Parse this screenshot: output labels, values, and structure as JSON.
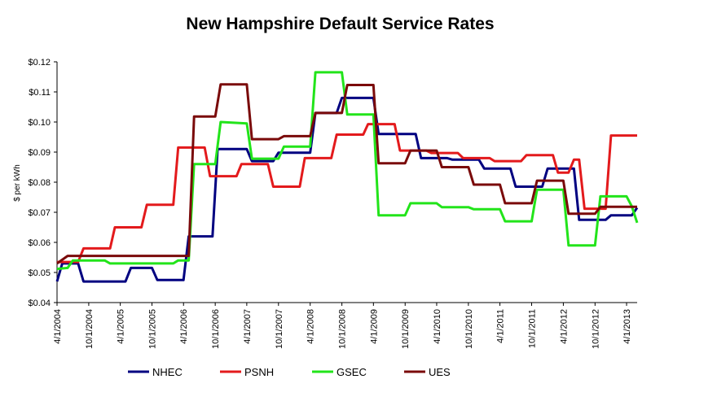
{
  "chart_data": {
    "type": "line",
    "title": "New Hampshire Default Service Rates",
    "xlabel": "",
    "ylabel": "$ per kWh",
    "ylim": [
      0.04,
      0.12
    ],
    "xlim": [
      "2004-04-01",
      "2013-06-01"
    ],
    "y_tick_labels": [
      "$0.04",
      "$0.05",
      "$0.06",
      "$0.07",
      "$0.08",
      "$0.09",
      "$0.10",
      "$0.11",
      "$0.12"
    ],
    "y_tick_values": [
      0.04,
      0.05,
      0.06,
      0.07,
      0.08,
      0.09,
      0.1,
      0.11,
      0.12
    ],
    "x_ticks": [
      {
        "date": "2004-04-01",
        "label": "4/1/2004"
      },
      {
        "date": "2004-10-01",
        "label": "10/1/2004"
      },
      {
        "date": "2005-04-01",
        "label": "4/1/2005"
      },
      {
        "date": "2005-10-01",
        "label": "10/1/2005"
      },
      {
        "date": "2006-04-01",
        "label": "4/1/2006"
      },
      {
        "date": "2006-10-01",
        "label": "10/1/2006"
      },
      {
        "date": "2007-04-01",
        "label": "4/1/2007"
      },
      {
        "date": "2007-10-01",
        "label": "10/1/2007"
      },
      {
        "date": "2008-04-01",
        "label": "4/1/2008"
      },
      {
        "date": "2008-10-01",
        "label": "10/1/2008"
      },
      {
        "date": "2009-04-01",
        "label": "4/1/2009"
      },
      {
        "date": "2009-10-01",
        "label": "10/1/2009"
      },
      {
        "date": "2010-04-01",
        "label": "4/1/2010"
      },
      {
        "date": "2010-10-01",
        "label": "10/1/2010"
      },
      {
        "date": "2011-04-01",
        "label": "4/1/2011"
      },
      {
        "date": "2011-10-01",
        "label": "10/1/2011"
      },
      {
        "date": "2012-04-01",
        "label": "4/1/2012"
      },
      {
        "date": "2012-10-01",
        "label": "10/1/2012"
      },
      {
        "date": "2013-04-01",
        "label": "4/1/2013"
      }
    ],
    "grid": false,
    "legend_position": "bottom",
    "series": [
      {
        "name": "NHEC",
        "color": "#000080",
        "points": [
          [
            "2004-04-01",
            0.047
          ],
          [
            "2004-05-01",
            0.053
          ],
          [
            "2004-08-01",
            0.053
          ],
          [
            "2004-09-01",
            0.047
          ],
          [
            "2005-05-01",
            0.047
          ],
          [
            "2005-06-01",
            0.0515
          ],
          [
            "2005-10-01",
            0.0515
          ],
          [
            "2005-11-01",
            0.0475
          ],
          [
            "2006-04-01",
            0.0475
          ],
          [
            "2006-05-01",
            0.062
          ],
          [
            "2006-09-15",
            0.062
          ],
          [
            "2006-10-15",
            0.091
          ],
          [
            "2007-04-01",
            0.091
          ],
          [
            "2007-05-01",
            0.087
          ],
          [
            "2007-09-01",
            0.087
          ],
          [
            "2007-10-01",
            0.0898
          ],
          [
            "2008-04-01",
            0.0898
          ],
          [
            "2008-05-01",
            0.103
          ],
          [
            "2008-09-01",
            0.103
          ],
          [
            "2008-10-01",
            0.108
          ],
          [
            "2009-04-01",
            0.108
          ],
          [
            "2009-05-01",
            0.096
          ],
          [
            "2009-12-01",
            0.096
          ],
          [
            "2010-01-01",
            0.088
          ],
          [
            "2010-06-01",
            0.088
          ],
          [
            "2010-07-01",
            0.0875
          ],
          [
            "2010-12-01",
            0.0875
          ],
          [
            "2011-01-01",
            0.0845
          ],
          [
            "2011-06-01",
            0.0845
          ],
          [
            "2011-07-01",
            0.0785
          ],
          [
            "2011-12-01",
            0.0785
          ],
          [
            "2012-01-01",
            0.0845
          ],
          [
            "2012-06-01",
            0.0845
          ],
          [
            "2012-07-01",
            0.0675
          ],
          [
            "2012-12-01",
            0.0675
          ],
          [
            "2013-01-01",
            0.069
          ],
          [
            "2013-05-01",
            0.069
          ],
          [
            "2013-06-01",
            0.0715
          ]
        ]
      },
      {
        "name": "PSNH",
        "color": "#e31a1c",
        "points": [
          [
            "2004-04-01",
            0.0535
          ],
          [
            "2004-08-01",
            0.0535
          ],
          [
            "2004-09-01",
            0.058
          ],
          [
            "2005-02-01",
            0.058
          ],
          [
            "2005-03-01",
            0.065
          ],
          [
            "2005-08-01",
            0.065
          ],
          [
            "2005-09-01",
            0.0725
          ],
          [
            "2006-02-01",
            0.0725
          ],
          [
            "2006-03-01",
            0.0915
          ],
          [
            "2006-08-01",
            0.0915
          ],
          [
            "2006-09-01",
            0.082
          ],
          [
            "2007-02-01",
            0.082
          ],
          [
            "2007-03-01",
            0.086
          ],
          [
            "2007-08-01",
            0.086
          ],
          [
            "2007-09-01",
            0.0785
          ],
          [
            "2008-02-01",
            0.0785
          ],
          [
            "2008-03-01",
            0.088
          ],
          [
            "2008-08-01",
            0.088
          ],
          [
            "2008-09-01",
            0.0958
          ],
          [
            "2009-02-01",
            0.0958
          ],
          [
            "2009-03-01",
            0.0993
          ],
          [
            "2009-08-01",
            0.0993
          ],
          [
            "2009-09-01",
            0.0905
          ],
          [
            "2010-02-01",
            0.0905
          ],
          [
            "2010-03-01",
            0.0897
          ],
          [
            "2010-08-01",
            0.0897
          ],
          [
            "2010-09-01",
            0.088
          ],
          [
            "2011-02-01",
            0.088
          ],
          [
            "2011-03-01",
            0.087
          ],
          [
            "2011-08-01",
            0.087
          ],
          [
            "2011-09-01",
            0.089
          ],
          [
            "2012-02-01",
            0.089
          ],
          [
            "2012-03-01",
            0.0832
          ],
          [
            "2012-05-01",
            0.0832
          ],
          [
            "2012-06-01",
            0.0875
          ],
          [
            "2012-07-01",
            0.0875
          ],
          [
            "2012-08-01",
            0.0712
          ],
          [
            "2012-12-01",
            0.0712
          ],
          [
            "2013-01-01",
            0.0955
          ],
          [
            "2013-06-01",
            0.0955
          ]
        ]
      },
      {
        "name": "GSEC",
        "color": "#22e41a",
        "points": [
          [
            "2004-04-01",
            0.0512
          ],
          [
            "2004-06-01",
            0.0515
          ],
          [
            "2004-07-01",
            0.054
          ],
          [
            "2005-01-01",
            0.054
          ],
          [
            "2005-02-01",
            0.053
          ],
          [
            "2006-02-01",
            0.053
          ],
          [
            "2006-03-01",
            0.054
          ],
          [
            "2006-05-01",
            0.054
          ],
          [
            "2006-06-01",
            0.086
          ],
          [
            "2006-10-01",
            0.086
          ],
          [
            "2006-11-01",
            0.1
          ],
          [
            "2007-04-01",
            0.0995
          ],
          [
            "2007-05-01",
            0.0878
          ],
          [
            "2007-10-01",
            0.0878
          ],
          [
            "2007-11-01",
            0.0918
          ],
          [
            "2008-04-01",
            0.0918
          ],
          [
            "2008-05-01",
            0.1165
          ],
          [
            "2008-10-01",
            0.1165
          ],
          [
            "2008-11-01",
            0.1025
          ],
          [
            "2009-04-01",
            0.1025
          ],
          [
            "2009-05-01",
            0.069
          ],
          [
            "2009-10-01",
            0.069
          ],
          [
            "2009-11-01",
            0.073
          ],
          [
            "2010-04-01",
            0.073
          ],
          [
            "2010-05-01",
            0.0717
          ],
          [
            "2010-10-01",
            0.0717
          ],
          [
            "2010-11-01",
            0.071
          ],
          [
            "2011-04-01",
            0.071
          ],
          [
            "2011-05-01",
            0.067
          ],
          [
            "2011-10-01",
            0.067
          ],
          [
            "2011-11-01",
            0.0775
          ],
          [
            "2012-04-01",
            0.0775
          ],
          [
            "2012-05-01",
            0.059
          ],
          [
            "2012-10-01",
            0.059
          ],
          [
            "2012-11-01",
            0.0753
          ],
          [
            "2013-04-01",
            0.0753
          ],
          [
            "2013-05-01",
            0.072
          ],
          [
            "2013-06-01",
            0.0665
          ]
        ]
      },
      {
        "name": "UES",
        "color": "#7a0a0a",
        "points": [
          [
            "2004-04-01",
            0.053
          ],
          [
            "2004-06-01",
            0.0555
          ],
          [
            "2005-12-01",
            0.0555
          ],
          [
            "2006-05-01",
            0.0555
          ],
          [
            "2006-06-01",
            0.1018
          ],
          [
            "2006-10-01",
            0.1018
          ],
          [
            "2006-11-01",
            0.1125
          ],
          [
            "2007-04-01",
            0.1125
          ],
          [
            "2007-05-01",
            0.0943
          ],
          [
            "2007-10-01",
            0.0943
          ],
          [
            "2007-11-01",
            0.0953
          ],
          [
            "2008-04-01",
            0.0953
          ],
          [
            "2008-05-01",
            0.103
          ],
          [
            "2008-10-01",
            0.103
          ],
          [
            "2008-11-01",
            0.1123
          ],
          [
            "2009-04-01",
            0.1123
          ],
          [
            "2009-05-01",
            0.0863
          ],
          [
            "2009-10-01",
            0.0863
          ],
          [
            "2009-11-01",
            0.0905
          ],
          [
            "2010-04-01",
            0.0905
          ],
          [
            "2010-05-01",
            0.085
          ],
          [
            "2010-10-01",
            0.085
          ],
          [
            "2010-11-01",
            0.0792
          ],
          [
            "2011-04-01",
            0.0792
          ],
          [
            "2011-05-01",
            0.073
          ],
          [
            "2011-10-01",
            0.073
          ],
          [
            "2011-11-01",
            0.0805
          ],
          [
            "2012-04-01",
            0.0805
          ],
          [
            "2012-05-01",
            0.0695
          ],
          [
            "2012-10-01",
            0.0695
          ],
          [
            "2012-11-01",
            0.0718
          ],
          [
            "2013-06-01",
            0.0718
          ]
        ]
      }
    ]
  }
}
